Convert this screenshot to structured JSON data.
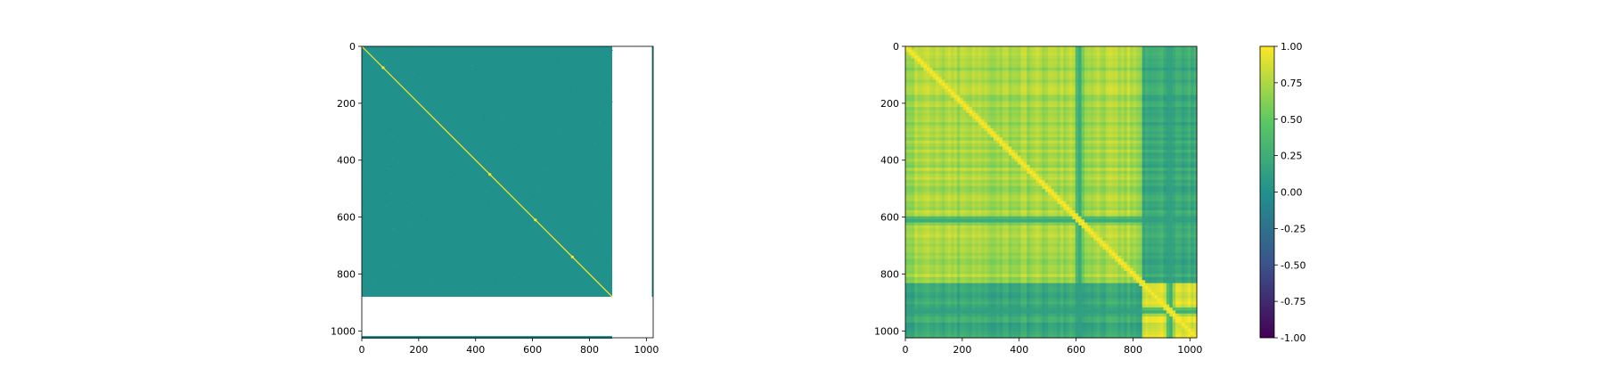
{
  "colormap": [
    "#440154",
    "#3b528b",
    "#21918c",
    "#5ec962",
    "#fde725"
  ],
  "chart_data": [
    {
      "type": "heatmap",
      "title": "",
      "xlabel": "",
      "ylabel": "",
      "matrix_size": 1024,
      "data_extent": 880,
      "base_value": 0.0,
      "diagonal_value": 1.0,
      "xlim": [
        0,
        1024
      ],
      "ylim": [
        1024,
        0
      ],
      "xticks": [
        "0",
        "200",
        "400",
        "600",
        "800",
        "1000"
      ],
      "yticks": [
        "0",
        "200",
        "400",
        "600",
        "800",
        "1000"
      ],
      "xtick_values": [
        0,
        200,
        400,
        600,
        800,
        1000
      ],
      "ytick_values": [
        0,
        200,
        400,
        600,
        800,
        1000
      ],
      "hotspots": [
        75,
        450,
        610,
        740
      ]
    },
    {
      "type": "heatmap",
      "title": "",
      "xlabel": "",
      "ylabel": "",
      "matrix_size": 1024,
      "xlim": [
        0,
        1024
      ],
      "ylim": [
        1024,
        0
      ],
      "xticks": [
        "0",
        "200",
        "400",
        "600",
        "800",
        "1000"
      ],
      "yticks": [
        "0",
        "200",
        "400",
        "600",
        "800",
        "1000"
      ],
      "xtick_values": [
        0,
        200,
        400,
        600,
        800,
        1000
      ],
      "ytick_values": [
        0,
        200,
        400,
        600,
        800,
        1000
      ],
      "low_band_centers": [
        610,
        930
      ],
      "cluster_boundary": 830,
      "colorbar": {
        "vmin": -1.0,
        "vmax": 1.0,
        "ticks": [
          "1.00",
          "0.75",
          "0.50",
          "0.25",
          "0.00",
          "-0.25",
          "-0.50",
          "-0.75",
          "-1.00"
        ],
        "tick_values": [
          1.0,
          0.75,
          0.5,
          0.25,
          0.0,
          -0.25,
          -0.5,
          -0.75,
          -1.0
        ]
      }
    }
  ]
}
